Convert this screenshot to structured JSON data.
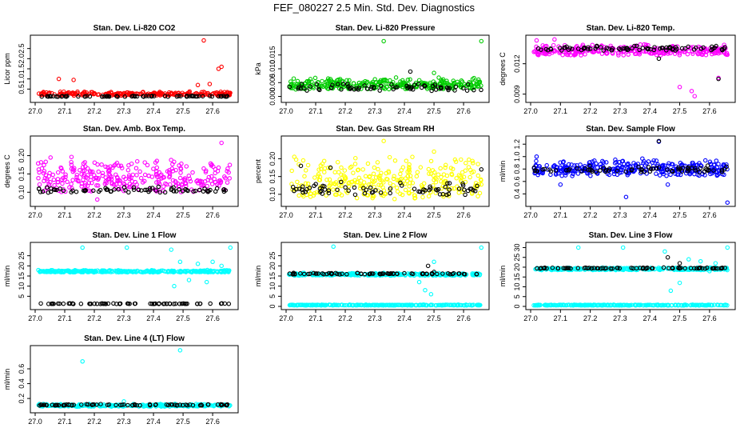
{
  "title": "FEF_080227  2.5 Min. Std. Dev. Diagnostics",
  "colors": {
    "red": "#ff0000",
    "green": "#00cc00",
    "magenta": "#ff00ff",
    "yellow": "#ffff00",
    "blue": "#0000ff",
    "cyan": "#00ffff",
    "black": "#000000"
  },
  "chart_data": [
    {
      "type": "scatter",
      "title": "Stan. Dev. Li-820 CO2",
      "ylabel": "Licor ppm",
      "xlim": [
        27.0,
        27.67
      ],
      "ylim": [
        0.0,
        3.0
      ],
      "xticks": [
        "27.0",
        "27.1",
        "27.2",
        "27.3",
        "27.4",
        "27.5",
        "27.6"
      ],
      "yticks": [
        "0.5",
        "1.0",
        "1.5",
        "2.0",
        "2.5"
      ],
      "series": [
        {
          "color": "red",
          "base": 0.18,
          "spread": 0.22,
          "n": 230,
          "outliers": [
            [
              27.08,
              1.0
            ],
            [
              27.13,
              0.95
            ],
            [
              27.57,
              2.9
            ],
            [
              27.62,
              1.5
            ],
            [
              27.63,
              1.6
            ],
            [
              27.55,
              0.7
            ],
            [
              27.59,
              0.75
            ]
          ]
        },
        {
          "color": "black",
          "base": 0.12,
          "spread": 0.05,
          "n": 70,
          "outliers": []
        }
      ]
    },
    {
      "type": "scatter",
      "title": "Stan. Dev. Li-820 Pressure",
      "ylabel": "kPa",
      "xlim": [
        27.0,
        27.67
      ],
      "ylim": [
        -0.001,
        0.021
      ],
      "xticks": [
        "27.0",
        "27.1",
        "27.2",
        "27.3",
        "27.4",
        "27.5",
        "27.6"
      ],
      "yticks": [
        "0.000",
        "0.005",
        "0.010",
        "0.015"
      ],
      "series": [
        {
          "color": "green",
          "base": 0.0025,
          "spread": 0.0045,
          "n": 300,
          "outliers": [
            [
              27.33,
              0.02
            ],
            [
              27.66,
              0.02
            ],
            [
              27.5,
              0.0085
            ]
          ]
        },
        {
          "color": "black",
          "base": 0.002,
          "spread": 0.003,
          "n": 70,
          "outliers": [
            [
              27.42,
              0.009
            ]
          ]
        }
      ]
    },
    {
      "type": "scatter",
      "title": "Stan. Dev. Li-820 Temp.",
      "ylabel": "degrees C",
      "xlim": [
        27.0,
        27.67
      ],
      "ylim": [
        0.0085,
        0.0145
      ],
      "xticks": [
        "27.0",
        "27.1",
        "27.2",
        "27.3",
        "27.4",
        "27.5",
        "27.6"
      ],
      "yticks": [
        "0.009",
        "0.012"
      ],
      "series": [
        {
          "color": "magenta",
          "base": 0.0128,
          "spread": 0.0012,
          "n": 300,
          "outliers": [
            [
              27.55,
              0.0088
            ],
            [
              27.54,
              0.0093
            ],
            [
              27.63,
              0.0106
            ],
            [
              27.5,
              0.0097
            ],
            [
              27.02,
              0.0143
            ],
            [
              27.08,
              0.0144
            ]
          ]
        },
        {
          "color": "black",
          "base": 0.0133,
          "spread": 0.0005,
          "n": 80,
          "outliers": [
            [
              27.63,
              0.0105
            ],
            [
              27.43,
              0.0125
            ]
          ]
        }
      ]
    },
    {
      "type": "scatter",
      "title": "Stan. Dev. Amb. Box Temp.",
      "ylabel": "degrees C",
      "xlim": [
        27.0,
        27.67
      ],
      "ylim": [
        0.07,
        0.245
      ],
      "xticks": [
        "27.0",
        "27.1",
        "27.2",
        "27.3",
        "27.4",
        "27.5",
        "27.6"
      ],
      "yticks": [
        "0.10",
        "0.15",
        "0.20"
      ],
      "series": [
        {
          "color": "magenta",
          "base": 0.1,
          "spread": 0.1,
          "n": 300,
          "outliers": [
            [
              27.63,
              0.235
            ],
            [
              27.21,
              0.08
            ]
          ]
        },
        {
          "color": "black",
          "base": 0.098,
          "spread": 0.02,
          "n": 75,
          "outliers": []
        }
      ]
    },
    {
      "type": "scatter",
      "title": "Stan. Dev. Gas Stream RH",
      "ylabel": "percent",
      "xlim": [
        27.0,
        27.67
      ],
      "ylim": [
        0.075,
        0.255
      ],
      "xticks": [
        "27.0",
        "27.1",
        "27.2",
        "27.3",
        "27.4",
        "27.5",
        "27.6"
      ],
      "yticks": [
        "0.10",
        "0.15",
        "0.20"
      ],
      "series": [
        {
          "color": "yellow",
          "base": 0.085,
          "spread": 0.13,
          "n": 300,
          "outliers": [
            [
              27.33,
              0.25
            ],
            [
              27.5,
              0.22
            ]
          ]
        },
        {
          "color": "black",
          "base": 0.098,
          "spread": 0.04,
          "n": 70,
          "outliers": [
            [
              27.05,
              0.18
            ],
            [
              27.66,
              0.17
            ],
            [
              27.15,
              0.175
            ]
          ]
        }
      ]
    },
    {
      "type": "scatter",
      "title": "Stan. Dev. Sample Flow",
      "ylabel": "ml/min",
      "xlim": [
        27.0,
        27.67
      ],
      "ylim": [
        0.25,
        1.28
      ],
      "xticks": [
        "27.0",
        "27.1",
        "27.2",
        "27.3",
        "27.4",
        "27.5",
        "27.6"
      ],
      "yticks": [
        "0.4",
        "0.6",
        "0.8",
        "1.0",
        "1.2"
      ],
      "series": [
        {
          "color": "blue",
          "base": 0.68,
          "spread": 0.3,
          "n": 320,
          "outliers": [
            [
              27.43,
              1.24
            ],
            [
              27.32,
              0.35
            ],
            [
              27.66,
              0.26
            ],
            [
              27.46,
              0.55
            ],
            [
              27.1,
              0.55
            ],
            [
              27.02,
              1.0
            ]
          ]
        },
        {
          "color": "black",
          "base": 0.74,
          "spread": 0.12,
          "n": 70,
          "outliers": [
            [
              27.43,
              1.25
            ]
          ]
        }
      ]
    },
    {
      "type": "scatter",
      "title": "Stan. Dev. Line 1 Flow",
      "ylabel": "ml/min",
      "xlim": [
        27.0,
        27.67
      ],
      "ylim": [
        0,
        30
      ],
      "xticks": [
        "27.0",
        "27.1",
        "27.2",
        "27.3",
        "27.4",
        "27.5",
        "27.6"
      ],
      "yticks": [
        "5",
        "10",
        "15",
        "20",
        "25"
      ],
      "series": [
        {
          "color": "cyan",
          "base": 16.8,
          "spread": 1.2,
          "n": 320,
          "outliers": [
            [
              27.16,
              29
            ],
            [
              27.31,
              29
            ],
            [
              27.46,
              28
            ],
            [
              27.66,
              29
            ],
            [
              27.47,
              10
            ],
            [
              27.52,
              13
            ],
            [
              27.49,
              22
            ],
            [
              27.55,
              21
            ],
            [
              27.58,
              12
            ],
            [
              27.6,
              22
            ],
            [
              27.63,
              20
            ]
          ]
        },
        {
          "color": "black",
          "base": 1.2,
          "spread": 0.3,
          "n": 70,
          "outliers": []
        }
      ]
    },
    {
      "type": "scatter",
      "title": "Stan. Dev. Line 2 Flow",
      "ylabel": "ml/min",
      "xlim": [
        27.0,
        27.67
      ],
      "ylim": [
        0,
        30
      ],
      "xticks": [
        "27.0",
        "27.1",
        "27.2",
        "27.3",
        "27.4",
        "27.5",
        "27.6"
      ],
      "yticks": [
        "0",
        "5",
        "10",
        "15",
        "20",
        "25"
      ],
      "series": [
        {
          "color": "cyan",
          "base": 15.2,
          "spread": 1.4,
          "n": 320,
          "outliers": [
            [
              27.16,
              29.5
            ],
            [
              27.47,
              8
            ],
            [
              27.49,
              6
            ],
            [
              27.5,
              22
            ],
            [
              27.45,
              12
            ],
            [
              27.66,
              29
            ]
          ]
        },
        {
          "color": "cyan",
          "base": 0.5,
          "spread": 0.4,
          "n": 250,
          "outliers": []
        },
        {
          "color": "black",
          "base": 15.8,
          "spread": 0.8,
          "n": 75,
          "outliers": [
            [
              27.48,
              20
            ],
            [
              27.5,
              17
            ]
          ]
        }
      ]
    },
    {
      "type": "scatter",
      "title": "Stan. Dev. Line 3 Flow",
      "ylabel": "ml/min",
      "xlim": [
        27.0,
        27.67
      ],
      "ylim": [
        0,
        31
      ],
      "xticks": [
        "27.0",
        "27.1",
        "27.2",
        "27.3",
        "27.4",
        "27.5",
        "27.6"
      ],
      "yticks": [
        "0",
        "5",
        "10",
        "15",
        "20",
        "25",
        "30"
      ],
      "series": [
        {
          "color": "cyan",
          "base": 18.5,
          "spread": 1.4,
          "n": 320,
          "outliers": [
            [
              27.16,
              30
            ],
            [
              27.31,
              30
            ],
            [
              27.45,
              28
            ],
            [
              27.66,
              30
            ],
            [
              27.47,
              8
            ],
            [
              27.5,
              12
            ],
            [
              27.53,
              24
            ],
            [
              27.57,
              23
            ],
            [
              27.6,
              18
            ],
            [
              27.62,
              22
            ]
          ]
        },
        {
          "color": "cyan",
          "base": 0.5,
          "spread": 0.4,
          "n": 250,
          "outliers": []
        },
        {
          "color": "black",
          "base": 19.2,
          "spread": 0.7,
          "n": 75,
          "outliers": [
            [
              27.46,
              25
            ],
            [
              27.5,
              22
            ]
          ]
        }
      ]
    },
    {
      "type": "scatter",
      "title": "Stan. Dev. Line 4 (LT) Flow",
      "ylabel": "ml/min",
      "xlim": [
        27.0,
        27.67
      ],
      "ylim": [
        0.05,
        0.87
      ],
      "xticks": [
        "27.0",
        "27.1",
        "27.2",
        "27.3",
        "27.4",
        "27.5",
        "27.6"
      ],
      "yticks": [
        "0.2",
        "0.4",
        "0.6"
      ],
      "series": [
        {
          "color": "cyan",
          "base": 0.09,
          "spread": 0.04,
          "n": 320,
          "outliers": [
            [
              27.16,
              0.7
            ],
            [
              27.49,
              0.85
            ],
            [
              27.3,
              0.16
            ]
          ]
        },
        {
          "color": "black",
          "base": 0.105,
          "spread": 0.02,
          "n": 75,
          "outliers": []
        }
      ]
    }
  ]
}
